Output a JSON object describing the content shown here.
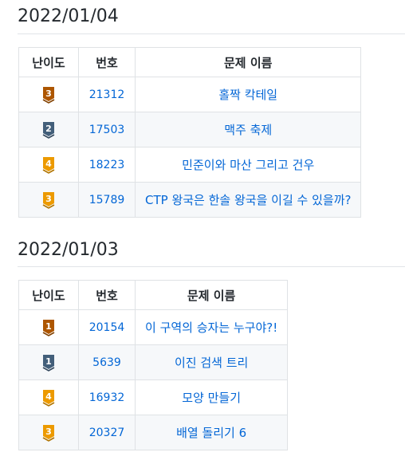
{
  "sections": [
    {
      "date": "2022/01/04",
      "headers": {
        "level": "난이도",
        "number": "번호",
        "name": "문제 이름"
      },
      "rows": [
        {
          "tier": "bronze",
          "level": "3",
          "number": "21312",
          "name": "홀짝 칵테일"
        },
        {
          "tier": "silver",
          "level": "2",
          "number": "17503",
          "name": "맥주 축제"
        },
        {
          "tier": "gold",
          "level": "4",
          "number": "18223",
          "name": "민준이와 마산 그리고 건우"
        },
        {
          "tier": "gold",
          "level": "3",
          "number": "15789",
          "name": "CTP 왕국은 한솔 왕국을 이길 수 있을까?"
        }
      ]
    },
    {
      "date": "2022/01/03",
      "headers": {
        "level": "난이도",
        "number": "번호",
        "name": "문제 이름"
      },
      "rows": [
        {
          "tier": "bronze",
          "level": "1",
          "number": "20154",
          "name": "이 구역의 승자는 누구야?!"
        },
        {
          "tier": "silver",
          "level": "1",
          "number": "5639",
          "name": "이진 검색 트리"
        },
        {
          "tier": "gold",
          "level": "4",
          "number": "16932",
          "name": "모양 만들기"
        },
        {
          "tier": "gold",
          "level": "3",
          "number": "20327",
          "name": "배열 돌리기 6"
        }
      ]
    }
  ],
  "tier_colors": {
    "bronze": "#ad5600",
    "silver": "#435f7a",
    "gold": "#ec9a00"
  }
}
